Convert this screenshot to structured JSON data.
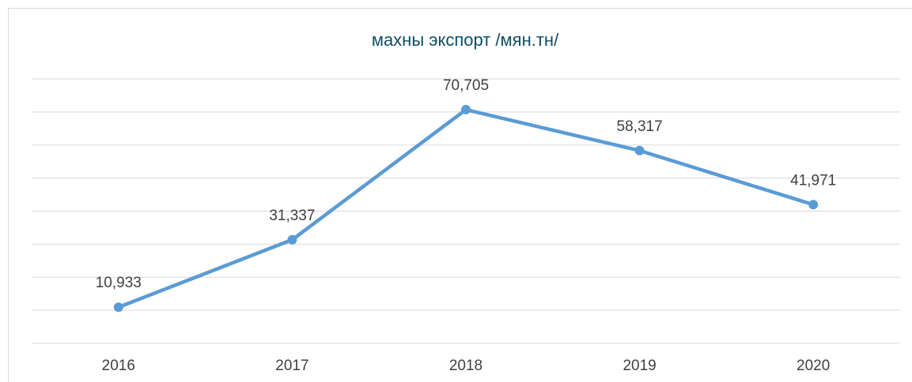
{
  "chart_data": {
    "type": "line",
    "title": "махны экспорт /мян.тн/",
    "categories": [
      "2016",
      "2017",
      "2018",
      "2019",
      "2020"
    ],
    "series": [
      {
        "name": "махны экспорт",
        "color": "#5b9bd5",
        "values": [
          10933,
          31337,
          70705,
          58317,
          41971
        ],
        "value_labels": [
          "10,933",
          "31,337",
          "70,705",
          "58,317",
          "41,971"
        ]
      }
    ],
    "ylim": [
      0,
      80000
    ],
    "yticks": [
      0,
      10000,
      20000,
      30000,
      40000,
      50000,
      60000,
      70000,
      80000
    ],
    "grid": true
  }
}
